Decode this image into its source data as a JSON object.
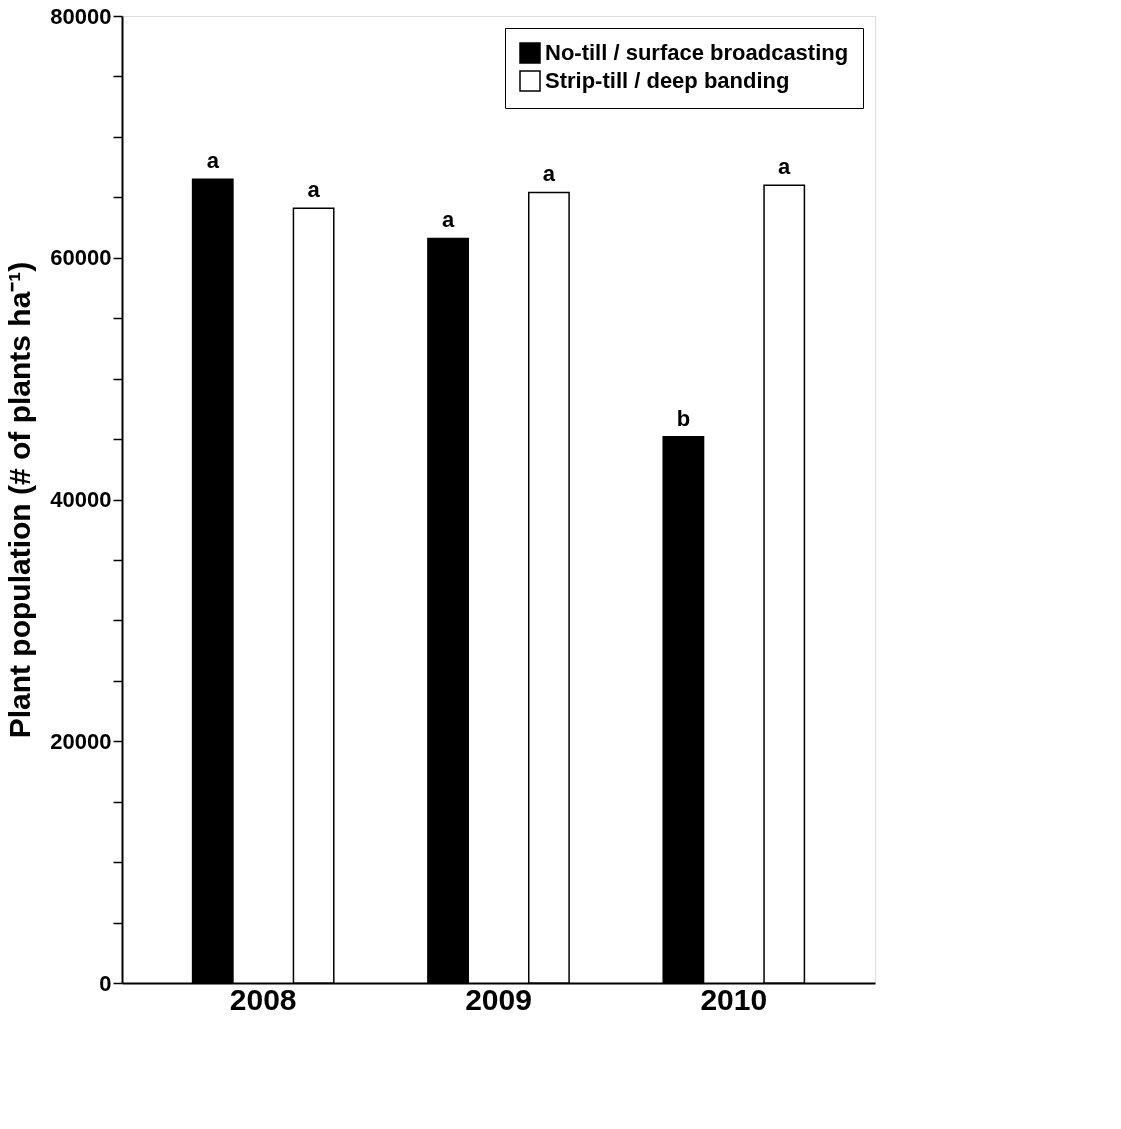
{
  "chart_data": {
    "type": "bar",
    "ylabel": "Plant population (# of plants ha⁻¹)",
    "categories": [
      "2008",
      "2009",
      "2010"
    ],
    "series": [
      {
        "name": "No-till / surface broadcasting",
        "color": "#000000",
        "values": [
          66500,
          61600,
          45200
        ],
        "value_labels": [
          "a",
          "a",
          "b"
        ]
      },
      {
        "name": "Strip-till / deep banding",
        "color": "#ffffff",
        "values": [
          64100,
          65400,
          66000
        ],
        "value_labels": [
          "a",
          "a",
          "a"
        ]
      }
    ],
    "ylim": [
      0,
      80000
    ],
    "yticks": [
      0,
      {
        "value": 5000,
        "label": null
      },
      {
        "value": 10000,
        "label": null
      },
      {
        "value": 15000,
        "label": null
      },
      20000,
      {
        "value": 25000,
        "label": null
      },
      {
        "value": 30000,
        "label": null
      },
      {
        "value": 35000,
        "label": null
      },
      40000,
      {
        "value": 45000,
        "label": null
      },
      {
        "value": 50000,
        "label": null
      },
      {
        "value": 55000,
        "label": null
      },
      60000,
      {
        "value": 65000,
        "label": null
      },
      {
        "value": 70000,
        "label": null
      },
      {
        "value": 75000,
        "label": null
      },
      80000
    ],
    "grid": false,
    "legend": "top right"
  }
}
